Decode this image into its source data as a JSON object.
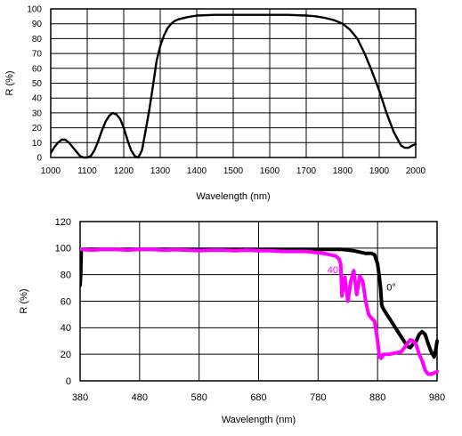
{
  "chart_data": [
    {
      "type": "line",
      "title": "",
      "xlabel": "Wavelength (nm)",
      "ylabel": "R (%)",
      "xlim": [
        1000,
        2000
      ],
      "ylim": [
        0,
        100
      ],
      "x_ticks": [
        1000,
        1100,
        1200,
        1300,
        1400,
        1500,
        1600,
        1700,
        1800,
        1900,
        2000
      ],
      "y_ticks": [
        0,
        10,
        20,
        30,
        40,
        50,
        60,
        70,
        80,
        90,
        100
      ],
      "grid": true,
      "series": [
        {
          "color": "#000000",
          "x": [
            1000,
            1010,
            1020,
            1030,
            1040,
            1050,
            1060,
            1070,
            1080,
            1090,
            1100,
            1110,
            1120,
            1130,
            1140,
            1150,
            1160,
            1170,
            1180,
            1190,
            1200,
            1210,
            1220,
            1230,
            1240,
            1250,
            1260,
            1270,
            1280,
            1290,
            1300,
            1310,
            1320,
            1330,
            1340,
            1350,
            1375,
            1400,
            1450,
            1500,
            1550,
            1600,
            1650,
            1700,
            1725,
            1750,
            1775,
            1800,
            1820,
            1840,
            1860,
            1880,
            1900,
            1920,
            1940,
            1960,
            1970,
            1980,
            1990,
            2000
          ],
          "y": [
            3,
            7,
            10,
            12,
            12,
            10,
            7,
            4,
            1,
            0,
            0,
            1,
            5,
            11,
            18,
            24,
            28,
            30,
            29,
            26,
            20,
            12,
            5,
            1,
            0,
            5,
            18,
            32,
            48,
            65,
            75,
            82,
            87,
            90,
            92,
            93,
            94.5,
            95.5,
            96,
            96,
            96,
            96,
            96,
            95.5,
            95,
            94,
            92.5,
            90,
            86,
            80,
            70,
            58,
            45,
            30,
            17,
            8,
            6.5,
            6.5,
            8,
            9
          ]
        }
      ]
    },
    {
      "type": "line",
      "title": "",
      "xlabel": "Wavelength (nm)",
      "ylabel": "R (%)",
      "xlim": [
        380,
        980
      ],
      "ylim": [
        0,
        120
      ],
      "x_ticks": [
        380,
        480,
        580,
        680,
        780,
        880,
        980
      ],
      "y_ticks": [
        0,
        20,
        40,
        60,
        80,
        100,
        120
      ],
      "grid": true,
      "annotations": [
        {
          "text": "40°",
          "x": 808,
          "y": 81,
          "color": "#ff00ff"
        },
        {
          "text": "0°",
          "x": 903,
          "y": 68,
          "color": "#000000"
        }
      ],
      "series": [
        {
          "name": "0°",
          "color": "#000000",
          "x": [
            380,
            381,
            382,
            383,
            400,
            500,
            600,
            700,
            780,
            790,
            800,
            820,
            840,
            850,
            860,
            870,
            875,
            880,
            883,
            885,
            887,
            890,
            900,
            910,
            920,
            930,
            935,
            940,
            945,
            950,
            955,
            960,
            965,
            970,
            975,
            978,
            980
          ],
          "y": [
            72,
            80,
            98,
            99,
            99,
            99,
            99,
            99,
            99,
            99,
            99,
            99,
            98,
            97,
            96,
            96,
            95,
            88,
            78,
            70,
            57,
            54,
            47,
            40,
            33,
            26,
            25,
            28,
            30,
            35,
            37,
            35,
            28,
            22,
            18,
            24,
            30
          ]
        },
        {
          "name": "40°",
          "color": "#ff00ff",
          "x": [
            380,
            400,
            420,
            440,
            460,
            480,
            500,
            520,
            540,
            560,
            580,
            600,
            620,
            640,
            660,
            680,
            700,
            720,
            740,
            760,
            770,
            780,
            790,
            800,
            810,
            815,
            818,
            820,
            825,
            830,
            835,
            840,
            845,
            850,
            855,
            860,
            865,
            870,
            875,
            880,
            883,
            886,
            890,
            900,
            910,
            920,
            930,
            935,
            940,
            945,
            950,
            955,
            960,
            965,
            970,
            975,
            980
          ],
          "y": [
            99,
            98.5,
            99,
            99,
            98.5,
            99,
            99,
            98.5,
            98.8,
            98.5,
            98,
            98.5,
            98.5,
            98,
            98.5,
            98,
            98,
            97.5,
            97.5,
            97.5,
            97,
            96.5,
            96,
            95,
            94,
            92,
            88,
            64,
            78,
            60,
            75,
            83,
            65,
            79,
            75,
            60,
            50,
            47,
            45,
            30,
            18,
            17,
            20,
            20,
            21,
            22,
            28,
            31,
            30,
            27,
            20,
            15,
            8,
            5,
            5,
            6,
            7
          ]
        }
      ]
    }
  ]
}
